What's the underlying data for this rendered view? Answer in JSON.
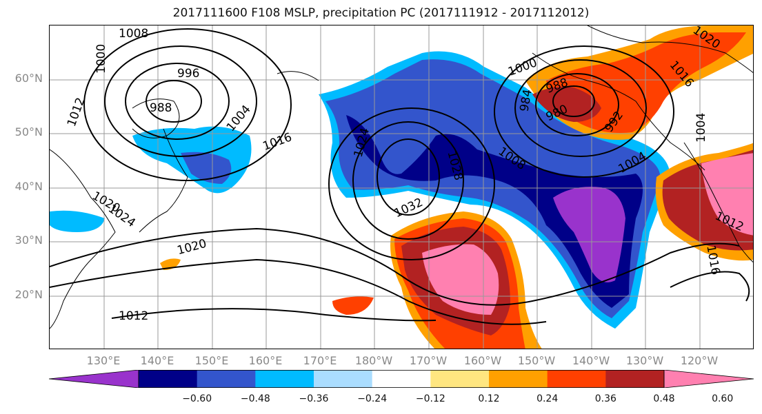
{
  "title": "2017111600 F108 MSLP, precipitation PC (2017111912 - 2017112012)",
  "lat_ticks": [
    "60°N",
    "50°N",
    "40°N",
    "30°N",
    "20°N"
  ],
  "lon_ticks": [
    "130°E",
    "140°E",
    "150°E",
    "160°E",
    "170°E",
    "180°W",
    "170°W",
    "160°W",
    "150°W",
    "140°W",
    "130°W",
    "120°W"
  ],
  "colorbar": {
    "tick_labels": [
      "−0.60",
      "−0.48",
      "−0.36",
      "−0.24",
      "−0.12",
      "0.12",
      "0.24",
      "0.36",
      "0.48",
      "0.60"
    ],
    "colors": [
      "#9933cc",
      "#000088",
      "#3355cc",
      "#00bbff",
      "#aaddff",
      "#ffffff",
      "#ffe680",
      "#ffa000",
      "#ff4000",
      "#b22222",
      "#ff80b0"
    ]
  },
  "isobar_labels": [
    "1008",
    "1000",
    "996",
    "988",
    "1012",
    "1004",
    "1016",
    "1020",
    "1024",
    "1024",
    "1032",
    "1028",
    "1008",
    "1000",
    "988",
    "980",
    "984",
    "992",
    "1004",
    "1020",
    "1016",
    "1004",
    "1012",
    "1016",
    "1020",
    "1012"
  ]
}
